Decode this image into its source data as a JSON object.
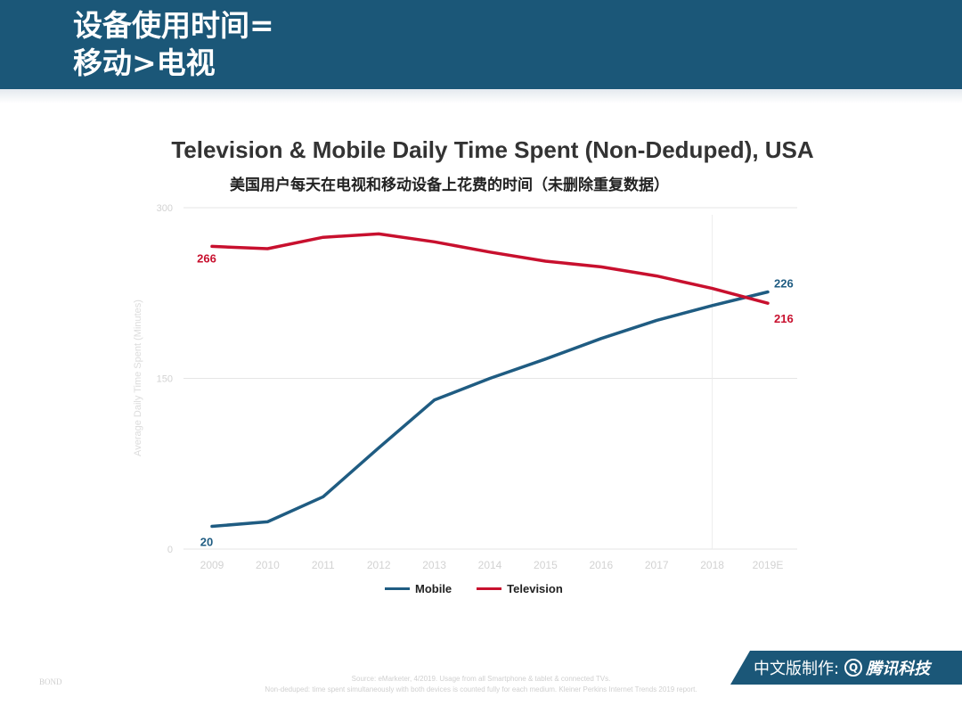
{
  "header": {
    "title_line1": "设备使用时间=",
    "title_line2": "移动>电视",
    "background": "#1b5778"
  },
  "chart_data": {
    "type": "line",
    "title": "Television & Mobile Daily Time Spent (Non-Deduped), USA",
    "subtitle": "美国用户每天在电视和移动设备上花费的时间（未删除重复数据）",
    "ylabel": "Average Daily Time Spent (Minutes)",
    "xlabel": "",
    "categories": [
      "2009",
      "2010",
      "2011",
      "2012",
      "2013",
      "2014",
      "2015",
      "2016",
      "2017",
      "2018",
      "2019E"
    ],
    "ylim": [
      0,
      300
    ],
    "yticks": [
      0,
      150,
      300
    ],
    "grid": true,
    "legend_position": "bottom",
    "series": [
      {
        "name": "Mobile",
        "color": "#1f5c82",
        "values": [
          20,
          24,
          46,
          89,
          131,
          150,
          167,
          185,
          201,
          214,
          226
        ],
        "labels": [
          {
            "index": 0,
            "text": "20"
          },
          {
            "index": 10,
            "text": "226"
          }
        ]
      },
      {
        "name": "Television",
        "color": "#c8102e",
        "values": [
          266,
          264,
          274,
          277,
          270,
          261,
          253,
          248,
          240,
          229,
          216
        ],
        "labels": [
          {
            "index": 0,
            "text": "266"
          },
          {
            "index": 10,
            "text": "216"
          }
        ]
      }
    ]
  },
  "footer": {
    "source_line1": "Source: eMarketer, 4/2019. Usage from all Smartphone & tablet & connected TVs.",
    "source_line2": "Non-deduped: time spent simultaneously with both devices is counted fully for each medium. Kleiner Perkins Internet Trends 2019 report.",
    "logo": "BOND",
    "credit_prefix": "中文版制作:",
    "credit_icon": "Q",
    "credit_brand": "腾讯科技",
    "credit_bg": "#1b5778"
  }
}
